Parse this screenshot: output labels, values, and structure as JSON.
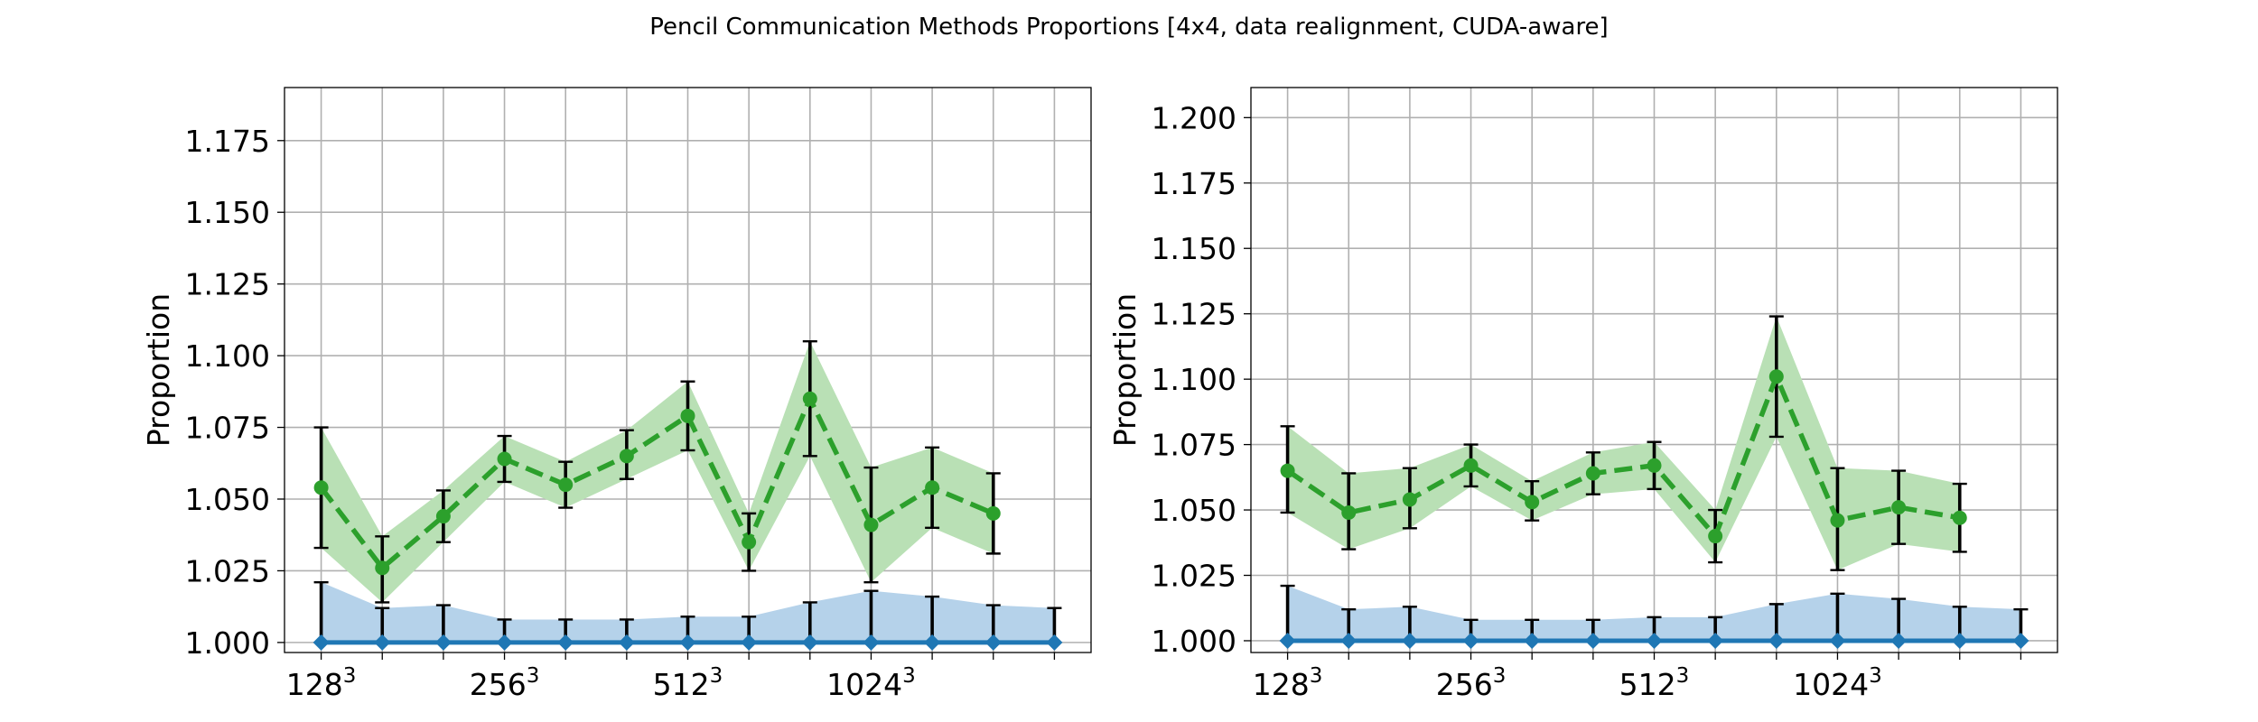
{
  "figure": {
    "suptitle": "Pencil Communication Methods Proportions [4x4, data realignment, CUDA-aware]"
  },
  "colors": {
    "baseline": "#1f77b4",
    "baseline_fill": "#b5d2ea",
    "method": "#2ca02c",
    "method_fill": "#b9e0b5",
    "errbar": "#000000",
    "grid": "#b0b0b0"
  },
  "chart_data": [
    {
      "type": "line",
      "title": "",
      "xlabel": "",
      "ylabel": "Proportion",
      "xlim": [
        -0.6,
        12.6
      ],
      "ylim": [
        0.9965,
        1.1935
      ],
      "yticks": [
        "1.000",
        "1.025",
        "1.050",
        "1.075",
        "1.100",
        "1.125",
        "1.150",
        "1.175"
      ],
      "xtick_labels": [
        {
          "x": 0,
          "base": "128",
          "exp": "3"
        },
        {
          "x": 3,
          "base": "256",
          "exp": "3"
        },
        {
          "x": 6,
          "base": "512",
          "exp": "3"
        },
        {
          "x": 9,
          "base": "1024",
          "exp": "3"
        }
      ],
      "grid": true,
      "series": [
        {
          "style": "baseline",
          "x": [
            0,
            1,
            2,
            3,
            4,
            5,
            6,
            7,
            8,
            9,
            10,
            11,
            12
          ],
          "values": [
            1.0,
            1.0,
            1.0,
            1.0,
            1.0,
            1.0,
            1.0,
            1.0,
            1.0,
            1.0,
            1.0,
            1.0,
            1.0
          ],
          "err_upper": [
            1.021,
            1.012,
            1.013,
            1.008,
            1.008,
            1.008,
            1.009,
            1.009,
            1.014,
            1.018,
            1.016,
            1.013,
            1.012
          ]
        },
        {
          "style": "method",
          "x": [
            0,
            1,
            2,
            3,
            4,
            5,
            6,
            7,
            8,
            9,
            10,
            11
          ],
          "values": [
            1.054,
            1.026,
            1.044,
            1.064,
            1.055,
            1.065,
            1.079,
            1.035,
            1.085,
            1.041,
            1.054,
            1.045
          ],
          "err_lower": [
            1.033,
            1.014,
            1.035,
            1.056,
            1.047,
            1.057,
            1.067,
            1.025,
            1.065,
            1.021,
            1.04,
            1.031
          ],
          "err_upper": [
            1.075,
            1.037,
            1.053,
            1.072,
            1.063,
            1.074,
            1.091,
            1.045,
            1.105,
            1.061,
            1.068,
            1.059
          ]
        }
      ]
    },
    {
      "type": "line",
      "title": "",
      "xlabel": "",
      "ylabel": "Proportion",
      "xlim": [
        -0.6,
        12.6
      ],
      "ylim": [
        0.9955,
        1.2115
      ],
      "yticks": [
        "1.000",
        "1.025",
        "1.050",
        "1.075",
        "1.100",
        "1.125",
        "1.150",
        "1.175",
        "1.200"
      ],
      "xtick_labels": [
        {
          "x": 0,
          "base": "128",
          "exp": "3"
        },
        {
          "x": 3,
          "base": "256",
          "exp": "3"
        },
        {
          "x": 6,
          "base": "512",
          "exp": "3"
        },
        {
          "x": 9,
          "base": "1024",
          "exp": "3"
        }
      ],
      "grid": true,
      "series": [
        {
          "style": "baseline",
          "x": [
            0,
            1,
            2,
            3,
            4,
            5,
            6,
            7,
            8,
            9,
            10,
            11,
            12
          ],
          "values": [
            1.0,
            1.0,
            1.0,
            1.0,
            1.0,
            1.0,
            1.0,
            1.0,
            1.0,
            1.0,
            1.0,
            1.0,
            1.0
          ],
          "err_upper": [
            1.021,
            1.012,
            1.013,
            1.008,
            1.008,
            1.008,
            1.009,
            1.009,
            1.014,
            1.018,
            1.016,
            1.013,
            1.012
          ]
        },
        {
          "style": "method",
          "x": [
            0,
            1,
            2,
            3,
            4,
            5,
            6,
            7,
            8,
            9,
            10,
            11
          ],
          "values": [
            1.065,
            1.049,
            1.054,
            1.067,
            1.053,
            1.064,
            1.067,
            1.04,
            1.101,
            1.046,
            1.051,
            1.047
          ],
          "err_lower": [
            1.049,
            1.035,
            1.043,
            1.059,
            1.046,
            1.056,
            1.058,
            1.03,
            1.078,
            1.027,
            1.037,
            1.034
          ],
          "err_upper": [
            1.082,
            1.064,
            1.066,
            1.075,
            1.061,
            1.072,
            1.076,
            1.05,
            1.124,
            1.066,
            1.065,
            1.06
          ]
        }
      ]
    }
  ]
}
